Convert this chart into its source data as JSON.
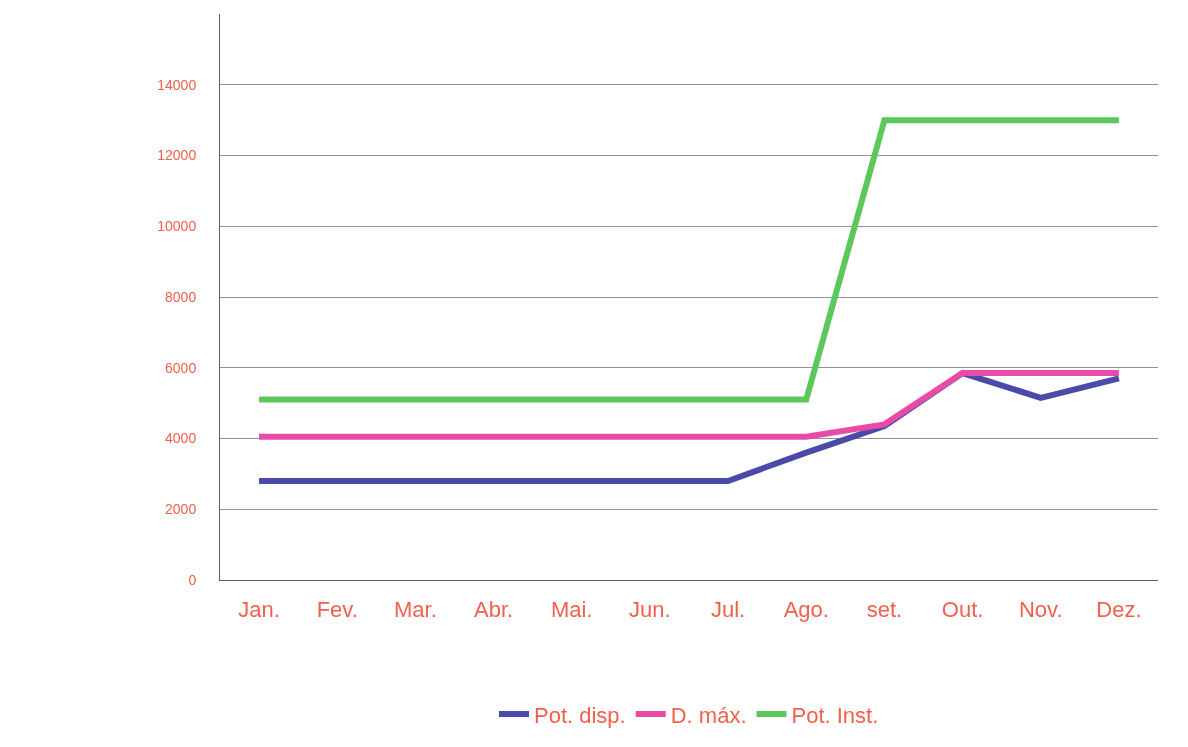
{
  "chart_data": {
    "type": "line",
    "categories": [
      "Jan.",
      "Fev.",
      "Mar.",
      "Abr.",
      "Mai.",
      "Jun.",
      "Jul.",
      "Ago.",
      "set.",
      "Out.",
      "Nov.",
      "Dez."
    ],
    "series": [
      {
        "name": "Pot. disp.",
        "color": "#4a4aa8",
        "values": [
          2800,
          2800,
          2800,
          2800,
          2800,
          2800,
          2800,
          3600,
          4350,
          5850,
          5150,
          5700
        ]
      },
      {
        "name": "D. máx.",
        "color": "#e84aa8",
        "values": [
          4050,
          4050,
          4050,
          4050,
          4050,
          4050,
          4050,
          4050,
          4400,
          5850,
          5850,
          5850
        ]
      },
      {
        "name": "Pot. Inst.",
        "color": "#5cc85c",
        "values": [
          5100,
          5100,
          5100,
          5100,
          5100,
          5100,
          5100,
          5100,
          13000,
          13000,
          13000,
          13000
        ]
      }
    ],
    "ylim": [
      0,
      16000
    ],
    "yticks": [
      0,
      2000,
      4000,
      6000,
      8000,
      10000,
      12000,
      14000
    ],
    "grid": "y",
    "legend": "bottom",
    "marker": "none",
    "line_style": "solid"
  }
}
